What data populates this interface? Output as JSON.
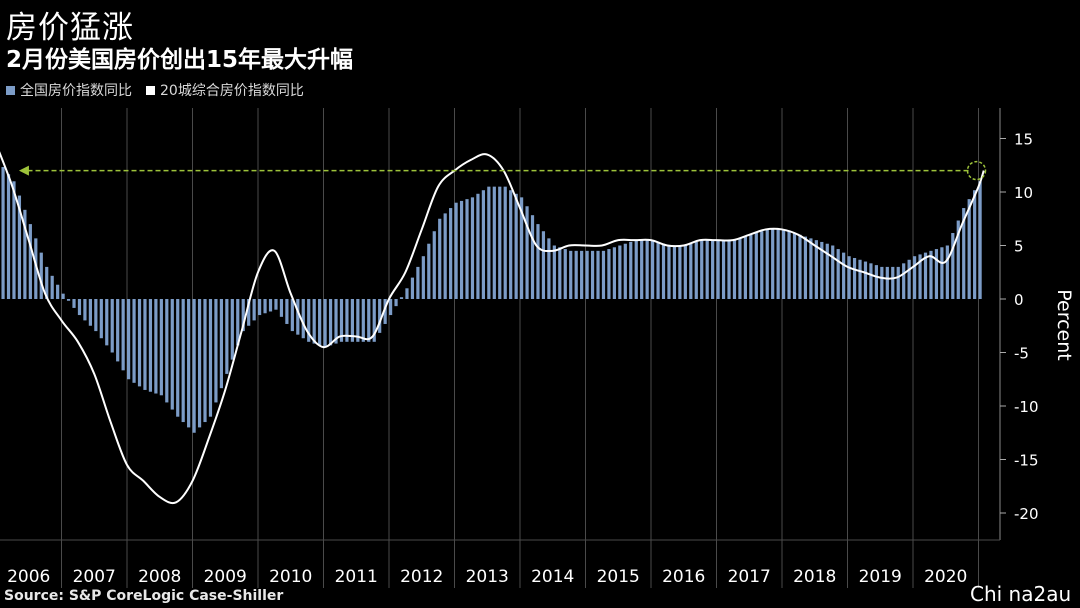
{
  "title": "房价猛涨",
  "subtitle": "2月份美国房价创出15年最大升幅",
  "source": "Source: S&P CoreLogic Case-Shiller",
  "watermark": "Chi na2au",
  "colors": {
    "background": "#000000",
    "bars": "#7c9cc7",
    "line": "#ffffff",
    "grid": "#4a4a4a",
    "arrow": "#9dc23a",
    "text": "#ffffff"
  },
  "chart_data": {
    "type": "bar",
    "xlabel": "",
    "ylabel": "Percent",
    "ylim": [
      -21,
      18
    ],
    "yticks": [
      15,
      10,
      5,
      0,
      -5,
      -10,
      -15,
      -20
    ],
    "x_start": 2006.0,
    "x_end": 2021.25,
    "year_labels": [
      "2006",
      "2007",
      "2008",
      "2009",
      "2010",
      "2011",
      "2012",
      "2013",
      "2014",
      "2015",
      "2016",
      "2017",
      "2018",
      "2019",
      "2020"
    ],
    "annotation": {
      "type": "arrow",
      "from_x": 2021.0,
      "to_x": 2006.35,
      "y": 12,
      "circle_x": 2021.0
    },
    "series": [
      {
        "name": "全国房价指数同比",
        "type": "bar",
        "x": [
          2006.0,
          2006.25,
          2006.5,
          2006.75,
          2007.0,
          2007.25,
          2007.5,
          2007.75,
          2008.0,
          2008.25,
          2008.5,
          2008.75,
          2009.0,
          2009.25,
          2009.5,
          2009.75,
          2010.0,
          2010.25,
          2010.5,
          2010.75,
          2011.0,
          2011.25,
          2011.5,
          2011.75,
          2012.0,
          2012.25,
          2012.5,
          2012.75,
          2013.0,
          2013.25,
          2013.5,
          2013.75,
          2014.0,
          2014.25,
          2014.5,
          2014.75,
          2015.0,
          2015.25,
          2015.5,
          2015.75,
          2016.0,
          2016.25,
          2016.5,
          2016.75,
          2017.0,
          2017.25,
          2017.5,
          2017.75,
          2018.0,
          2018.25,
          2018.5,
          2018.75,
          2019.0,
          2019.25,
          2019.5,
          2019.75,
          2020.0,
          2020.25,
          2020.5,
          2020.75,
          2021.0,
          2021.08
        ],
        "values": [
          13.0,
          11.0,
          7.0,
          3.0,
          0.5,
          -1.5,
          -3.0,
          -5.0,
          -7.5,
          -8.5,
          -9.0,
          -11.0,
          -12.5,
          -11.0,
          -7.0,
          -3.0,
          -1.5,
          -1.0,
          -3.0,
          -4.0,
          -4.5,
          -4.0,
          -4.0,
          -4.0,
          -1.5,
          1.0,
          4.0,
          7.5,
          9.0,
          9.5,
          10.5,
          10.5,
          9.5,
          7.0,
          5.0,
          4.5,
          4.5,
          4.5,
          5.0,
          5.5,
          5.5,
          5.0,
          5.0,
          5.5,
          5.5,
          5.5,
          6.0,
          6.5,
          6.5,
          6.0,
          5.5,
          5.0,
          4.0,
          3.5,
          3.0,
          3.0,
          4.0,
          4.5,
          5.0,
          8.5,
          11.0,
          12.0
        ]
      },
      {
        "name": "20城综合房价指数同比",
        "type": "line",
        "x": [
          2006.0,
          2006.25,
          2006.5,
          2006.75,
          2007.0,
          2007.25,
          2007.5,
          2007.75,
          2008.0,
          2008.25,
          2008.5,
          2008.75,
          2009.0,
          2009.25,
          2009.5,
          2009.75,
          2010.0,
          2010.25,
          2010.5,
          2010.75,
          2011.0,
          2011.25,
          2011.5,
          2011.75,
          2012.0,
          2012.25,
          2012.5,
          2012.75,
          2013.0,
          2013.25,
          2013.5,
          2013.75,
          2014.0,
          2014.25,
          2014.5,
          2014.75,
          2015.0,
          2015.25,
          2015.5,
          2015.75,
          2016.0,
          2016.25,
          2016.5,
          2016.75,
          2017.0,
          2017.25,
          2017.5,
          2017.75,
          2018.0,
          2018.25,
          2018.5,
          2018.75,
          2019.0,
          2019.25,
          2019.5,
          2019.75,
          2020.0,
          2020.25,
          2020.5,
          2020.75,
          2021.0,
          2021.08
        ],
        "values": [
          14.5,
          10.5,
          5.5,
          0.5,
          -2.0,
          -4.0,
          -7.0,
          -11.5,
          -15.5,
          -17.0,
          -18.5,
          -19.0,
          -17.0,
          -13.0,
          -8.5,
          -3.0,
          2.5,
          4.5,
          0.5,
          -3.0,
          -4.5,
          -3.5,
          -3.5,
          -3.5,
          0.0,
          2.5,
          6.5,
          10.5,
          12.0,
          13.0,
          13.5,
          12.0,
          8.5,
          5.0,
          4.5,
          5.0,
          5.0,
          5.0,
          5.5,
          5.5,
          5.5,
          5.0,
          5.0,
          5.5,
          5.5,
          5.5,
          6.0,
          6.5,
          6.5,
          6.0,
          5.0,
          4.0,
          3.0,
          2.5,
          2.0,
          2.0,
          3.0,
          4.0,
          3.5,
          7.0,
          10.5,
          12.0
        ]
      }
    ]
  }
}
